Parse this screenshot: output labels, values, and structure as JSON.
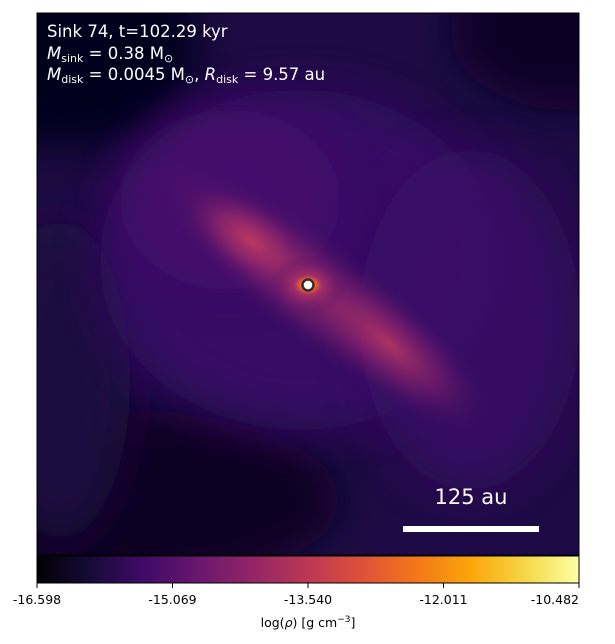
{
  "annotation": {
    "line1": "Sink 74, t=102.29 kyr",
    "line2_symbol": "M",
    "line2_sub": "sink",
    "line2_value": " = 0.38 M",
    "line2_unit_sub": "⊙",
    "line3_symbol": "M",
    "line3_sub": "disk",
    "line3_value": " = 0.0045 M",
    "line3_unit_sub": "⊙",
    "line3_sep": ", ",
    "line3_r_symbol": "R",
    "line3_r_sub": "disk",
    "line3_r_value": " = 9.57 au"
  },
  "scalebar": {
    "label": "125 au",
    "color": "#ffffff"
  },
  "colorbar": {
    "colormap": "inferno",
    "ticks": [
      "-16.598",
      "-15.069",
      "-13.540",
      "-12.011",
      "-10.482"
    ],
    "label_prefix": "log(",
    "label_rho": "ρ",
    "label_suffix": ") [g cm",
    "label_exp": "−3",
    "label_end": "]"
  },
  "sink": {
    "marker_color": "#ffffff",
    "ring_color": "#333333"
  }
}
